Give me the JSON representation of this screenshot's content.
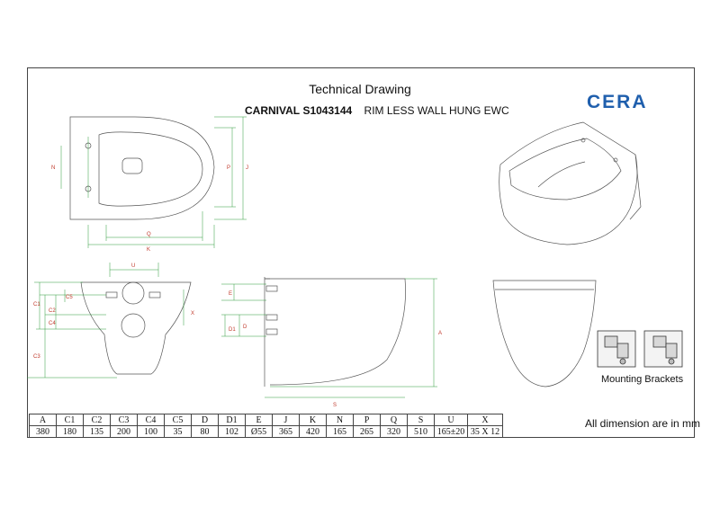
{
  "heading": "Technical Drawing",
  "product": {
    "name": "CARNIVAL",
    "code": "S1043144",
    "description": "RIM LESS WALL HUNG EWC"
  },
  "brand": "CERA",
  "colors": {
    "brand_blue": "#1f5fad",
    "dimension_red": "#c0392b",
    "dimension_green": "#2e9a3a"
  },
  "dimension_labels": {
    "n": "N",
    "p": "P",
    "j": "J",
    "q": "Q",
    "k": "K",
    "u": "U",
    "c1": "C1",
    "c2": "C2",
    "c4": "C4",
    "c5": "C5",
    "c3": "C3",
    "x": "X",
    "e": "E",
    "d1": "D1",
    "d": "D",
    "a": "A",
    "s": "S"
  },
  "brackets_label": "Mounting Brackets",
  "note": "All dimension are in mm",
  "table": {
    "headers": [
      "A",
      "C1",
      "C2",
      "C3",
      "C4",
      "C5",
      "D",
      "D1",
      "E",
      "J",
      "K",
      "N",
      "P",
      "Q",
      "S",
      "U",
      "X"
    ],
    "values": [
      "380",
      "180",
      "135",
      "200",
      "100",
      "35",
      "80",
      "102",
      "Ø55",
      "365",
      "420",
      "165",
      "265",
      "320",
      "510",
      "165±20",
      "35 X 12"
    ]
  }
}
